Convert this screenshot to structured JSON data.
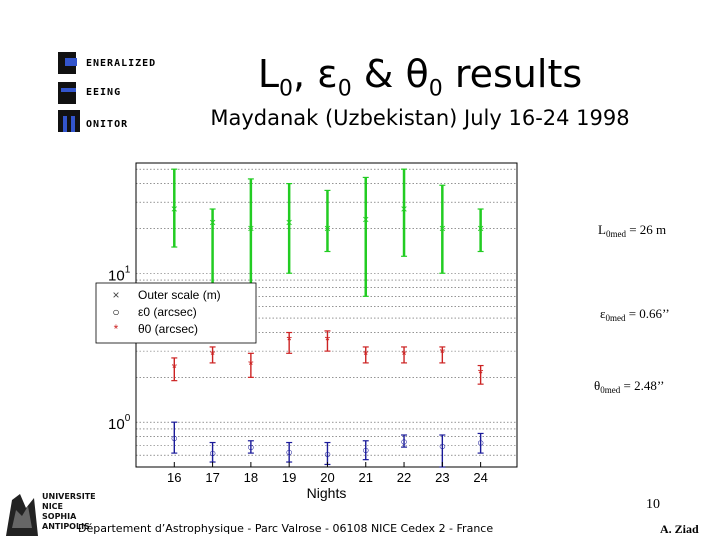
{
  "header": {
    "title_main": "L",
    "title_sub0": "0",
    "title_eps": ", ε",
    "title_sub1": "0",
    "title_amp": " & θ",
    "title_sub2": "0",
    "title_rest": " results",
    "subtitle": "Maydanak (Uzbekistan) July 16-24 1998"
  },
  "logo": {
    "words": [
      "ENERALIZED",
      "EEING",
      "ONITOR"
    ],
    "letters": [
      "G",
      "S",
      "M"
    ]
  },
  "stats": {
    "l0": {
      "symbol": "L",
      "sub": "0med",
      "value": " = 26 m"
    },
    "eps0": {
      "symbol": "ε",
      "sub": "0med",
      "value": " = 0.66’’"
    },
    "theta0": {
      "symbol": "θ",
      "sub": "0med",
      "value": " = 2.48’’"
    }
  },
  "footer": {
    "text": "Département d’Astrophysique - Parc Valrose - 06108 NICE Cedex 2 - France",
    "page": "10",
    "author": "A. Ziad"
  },
  "university": {
    "lines": [
      "UNIVERSITE",
      "NICE",
      "SOPHIA",
      "ANTIPOLIS"
    ]
  },
  "colors": {
    "outer_scale": "#22cc22",
    "epsilon": "#cc2222",
    "theta": "#1a1a99",
    "logo_accent": "#3355cc"
  },
  "chart_data": {
    "type": "scatter",
    "title": "",
    "xlabel": "Nights",
    "ylabel": "",
    "y_scale": "log",
    "ylim": [
      0.5,
      0.4
    ],
    "y_ticks": [
      {
        "value": 1,
        "base": "10",
        "exp": "0"
      },
      {
        "value": 10,
        "base": "10",
        "exp": "1"
      }
    ],
    "x_ticks": [
      16,
      17,
      18,
      19,
      20,
      21,
      22,
      23,
      24
    ],
    "grid": "dotted",
    "legend_placement": "left",
    "series": [
      {
        "name": "Outer scale (m)",
        "marker": "×",
        "color_key": "outer_scale",
        "x": [
          16,
          17,
          18,
          19,
          20,
          21,
          22,
          23,
          24
        ],
        "y": [
          27,
          22,
          20,
          22,
          20,
          23,
          27,
          20,
          20
        ],
        "low": [
          15,
          8,
          6,
          10,
          14,
          7,
          13,
          10,
          14
        ],
        "high": [
          50,
          27,
          43,
          40,
          36,
          44,
          50,
          39,
          27
        ]
      },
      {
        "name": "ε0 (arcsec)",
        "marker": "○",
        "color_key": "theta",
        "x": [
          16,
          17,
          18,
          19,
          20,
          21,
          22,
          23,
          24
        ],
        "y": [
          0.78,
          0.62,
          0.68,
          0.63,
          0.61,
          0.65,
          0.74,
          0.69,
          0.73
        ],
        "low": [
          0.62,
          0.54,
          0.62,
          0.54,
          0.52,
          0.56,
          0.68,
          0.5,
          0.62
        ],
        "high": [
          1.0,
          0.73,
          0.75,
          0.73,
          0.73,
          0.75,
          0.82,
          0.82,
          0.84
        ]
      },
      {
        "name": "θ0 (arcsec)",
        "marker": "*",
        "color_key": "epsilon",
        "x": [
          16,
          17,
          18,
          19,
          20,
          21,
          22,
          23,
          24
        ],
        "y": [
          2.3,
          2.8,
          2.4,
          3.5,
          3.5,
          2.8,
          2.8,
          2.9,
          2.1
        ],
        "low": [
          1.9,
          2.5,
          2.0,
          2.9,
          3.0,
          2.5,
          2.5,
          2.5,
          1.8
        ],
        "high": [
          2.7,
          3.2,
          2.9,
          4.0,
          4.1,
          3.2,
          3.2,
          3.2,
          2.4
        ]
      }
    ]
  }
}
